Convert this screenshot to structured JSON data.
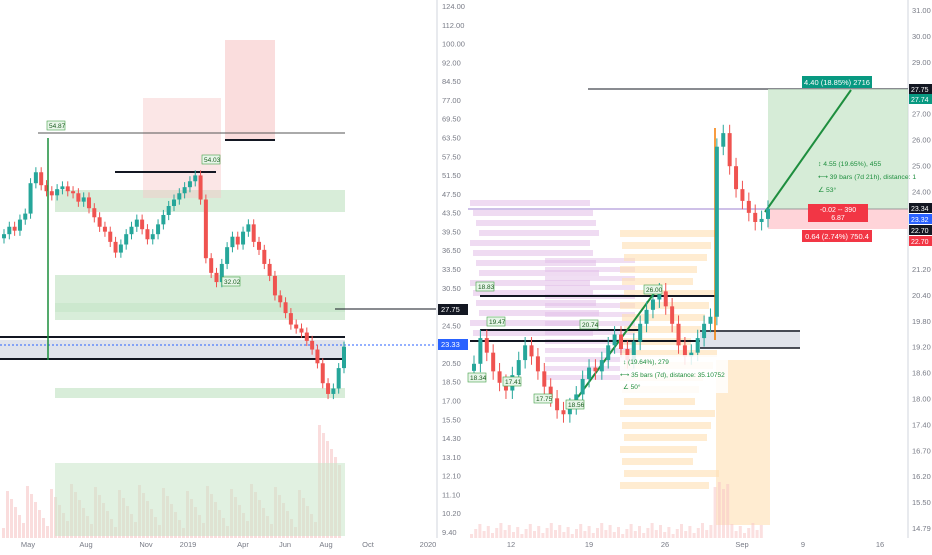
{
  "colors": {
    "up": "#26a69a",
    "down": "#ef5350",
    "axis_text": "#787b86",
    "grid": "#f0f3fa",
    "last_price_bg": "#2962ff",
    "target_green": "#089981",
    "stop_red": "#f23645",
    "black_level": "#131722"
  },
  "chart_data": [
    {
      "type": "candlestick",
      "panel": "left",
      "description_free": true,
      "x_tick_labels": [
        "May",
        "Aug",
        "Nov",
        "2019",
        "Apr",
        "Jun",
        "Aug",
        "Oct",
        "2020"
      ],
      "y_tick_labels": [
        "124.00",
        "112.00",
        "100.00",
        "92.00",
        "84.50",
        "77.00",
        "69.50",
        "63.50",
        "57.50",
        "51.50",
        "47.50",
        "43.50",
        "39.50",
        "36.50",
        "33.50",
        "30.50",
        "27.75",
        "24.50",
        "22.50",
        "20.50",
        "18.50",
        "17.00",
        "15.50",
        "14.30",
        "13.10",
        "12.10",
        "11.10",
        "10.20",
        "9.40"
      ],
      "last_price_label": "23.33",
      "level_label": "27.75",
      "log_scale": true,
      "annotations": [
        "54.87",
        "54.03",
        "32.02"
      ],
      "closes": [
        40.5,
        42.0,
        41.2,
        43.5,
        44.8,
        52.0,
        54.87,
        51.5,
        50.0,
        49.0,
        50.5,
        51.2,
        50.0,
        49.5,
        47.5,
        48.5,
        46.0,
        44.0,
        42.0,
        41.0,
        39.0,
        37.0,
        38.5,
        40.5,
        42.0,
        43.5,
        41.5,
        39.5,
        40.5,
        42.5,
        44.5,
        46.5,
        48.0,
        49.5,
        51.0,
        52.5,
        54.03,
        48.0,
        36.0,
        33.5,
        32.02,
        35.0,
        38.0,
        40.0,
        38.5,
        41.0,
        42.5,
        39.0,
        37.5,
        35.0,
        33.0,
        30.0,
        29.0,
        27.5,
        26.0,
        25.5,
        25.0,
        24.0,
        23.0,
        21.5,
        19.5,
        18.5,
        19.0,
        21.0,
        23.33
      ],
      "volume_hint": "histogram"
    },
    {
      "type": "candlestick",
      "panel": "right",
      "x_tick_labels": [
        "12",
        "19",
        "26",
        "Sep",
        "9",
        "16"
      ],
      "y_tick_labels": [
        "31.00",
        "30.00",
        "29.00",
        "28.00",
        "27.00",
        "26.00",
        "25.00",
        "24.00",
        "23.00",
        "22.00",
        "21.20",
        "20.40",
        "19.80",
        "19.20",
        "18.60",
        "18.00",
        "17.40",
        "16.70",
        "16.20",
        "15.50",
        "14.79"
      ],
      "price_labels": {
        "target_top": "27.75",
        "target_sub": "27.74",
        "entry": "23.34",
        "current": "23.32",
        "stop_a": "22.70",
        "stop_b": "22.70"
      },
      "annotations": [
        "18.83",
        "19.47",
        "18.34",
        "17.41",
        "17.75",
        "18.56",
        "20.74",
        "26.00"
      ],
      "closes": [
        18.7,
        19.4,
        19.0,
        18.5,
        18.2,
        18.0,
        18.4,
        18.8,
        19.2,
        18.9,
        18.5,
        18.1,
        17.8,
        17.5,
        17.4,
        17.6,
        17.9,
        18.3,
        18.6,
        18.5,
        18.8,
        19.2,
        19.5,
        19.1,
        18.8,
        19.3,
        19.8,
        20.2,
        20.5,
        20.74,
        20.3,
        19.8,
        19.2,
        18.9,
        19.0,
        19.4,
        19.8,
        20.0,
        25.5,
        26.0,
        24.8,
        24.0,
        23.6,
        23.2,
        22.9,
        23.0,
        23.34
      ],
      "trade": {
        "target_label": "4.40 (18.85%) 2716",
        "stop_label": "0.64 (2.74%) 750.4",
        "current_label_line1": "-0.02 -- 390",
        "current_label_line2": "6.87",
        "target_price": 27.75,
        "entry_price": 23.34,
        "stop_price": 22.7
      },
      "measure_1": {
        "line1": "4.55 (19.65%), 455",
        "line2": "39 bars (7d 21h), distance: 1",
        "line3": "53°"
      },
      "measure_2": {
        "line1": "(19.64%), 279",
        "line2": "35 bars (7d), distance: 35.10752",
        "line3": "50°"
      }
    }
  ]
}
